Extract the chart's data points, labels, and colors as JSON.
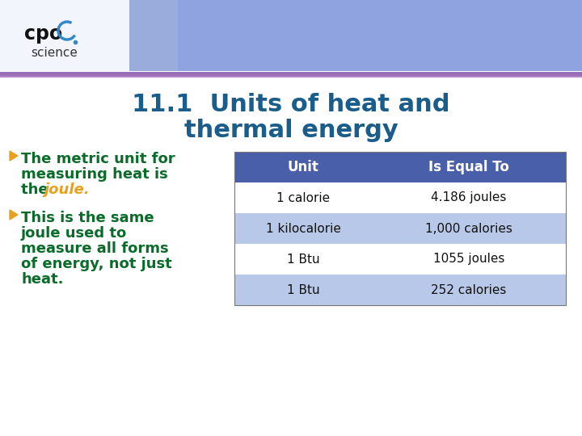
{
  "title_line1": "11.1  Units of heat and",
  "title_line2": "thermal energy",
  "title_color": "#1a5c8a",
  "title_fontsize": 22,
  "bullet_color": "#e8a020",
  "text_color": "#0a6b2a",
  "bullet1_lines": [
    "The metric unit for",
    "measuring heat is",
    "the "
  ],
  "bullet1_joule": "joule.",
  "bullet2_lines": [
    "This is the same",
    "joule used to",
    "measure all forms",
    "of energy, not just",
    "heat."
  ],
  "table_header_bg": "#4a5faa",
  "table_header_text": "#ffffff",
  "table_row_alt_bg": "#b8c8e8",
  "table_row_white_bg": "#ffffff",
  "table_col1_header": "Unit",
  "table_col2_header": "Is Equal To",
  "table_rows": [
    [
      "1 calorie",
      "4.186 joules"
    ],
    [
      "1 kilocalorie",
      "1,000 calories"
    ],
    [
      "1 Btu",
      "1055 joules"
    ],
    [
      "1 Btu",
      "252 calories"
    ]
  ],
  "row_colors": [
    "#ffffff",
    "#b8c8e8",
    "#ffffff",
    "#b8c8e8"
  ],
  "slide_bg": "#ffffff",
  "banner_bg": "#e8eef8",
  "banner_blue": "#4466cc",
  "swoosh_color1": "#8855aa",
  "swoosh_color2": "#cc99dd",
  "logo_cpo_color": "#111111",
  "logo_science_color": "#333333",
  "logo_arc_color": "#3388cc",
  "body_fontsize": 13,
  "table_fontsize": 11,
  "table_header_fontsize": 12
}
